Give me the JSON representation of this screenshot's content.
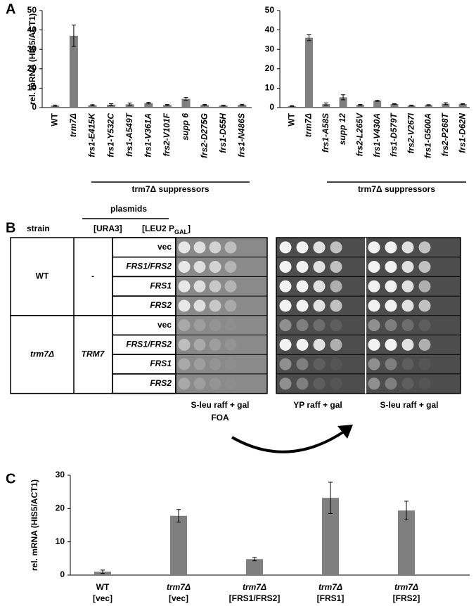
{
  "panel_labels": [
    "A",
    "B",
    "C"
  ],
  "chart_data": [
    {
      "type": "bar",
      "ylabel": "rel. mRNA (HIS5/ACT1)",
      "color": "#7f7f7f",
      "categories": [
        "WT",
        "trm7Δ",
        "frs1-E415K",
        "frs1-Y532C",
        "frs1-A549T",
        "frs1-V361A",
        "frs2-V101F",
        "supp 6",
        "frs2-D275G",
        "frs1-D55H",
        "frs1-N486S"
      ],
      "values": [
        1,
        37,
        1.2,
        1.5,
        1.7,
        2.3,
        1.3,
        4.5,
        1.3,
        1,
        1.4
      ],
      "errors": [
        0.3,
        5.5,
        0.3,
        0.5,
        0.6,
        0.4,
        0.3,
        0.7,
        0.3,
        0.2,
        0.3
      ],
      "ylim": [
        0,
        50
      ],
      "yticks": [
        0,
        10,
        20,
        30,
        40,
        50
      ],
      "group_label": "trm7Δ suppressors"
    },
    {
      "type": "bar",
      "color": "#7f7f7f",
      "categories": [
        "WT",
        "trm7Δ",
        "frs1-A58S",
        "supp 12",
        "frs2-L265V",
        "frs1-V430A",
        "frs1-D579T",
        "frs2-V267I",
        "frs1-G500A",
        "frs2-P268T",
        "frs1-D62N"
      ],
      "values": [
        0.8,
        36,
        1.8,
        5.3,
        1.4,
        3.5,
        1.8,
        1,
        1.3,
        2,
        1.8
      ],
      "errors": [
        0.2,
        1.5,
        0.6,
        1.3,
        0.2,
        0.3,
        0.2,
        0.2,
        0.2,
        0.5,
        0.2
      ],
      "ylim": [
        0,
        50
      ],
      "yticks": [
        0,
        10,
        20,
        30,
        40,
        50
      ],
      "group_label": "trm7Δ suppressors"
    },
    {
      "type": "bar",
      "ylabel": "rel. mRNA (HIS5/ACT1)",
      "color": "#7f7f7f",
      "categories": [
        "WT",
        "trm7Δ",
        "trm7Δ",
        "trm7Δ",
        "trm7Δ"
      ],
      "category_sublabels": [
        "[vec]",
        "[vec]",
        "[FRS1/FRS2]",
        "[FRS1]",
        "[FRS2]"
      ],
      "values": [
        1,
        17.8,
        4.8,
        23.2,
        19.4
      ],
      "errors": [
        0.5,
        1.9,
        0.5,
        4.7,
        2.8
      ],
      "ylim": [
        0,
        30
      ],
      "yticks": [
        0,
        10,
        20,
        30
      ]
    }
  ],
  "panel_b": {
    "plasmids": "plasmids",
    "strain": "strain",
    "ura3": "[URA3]",
    "leu2": {
      "main": "[LEU2 P",
      "sub": "GAL",
      "end": "]"
    },
    "groups": [
      {
        "strain": "WT",
        "ura3": "-",
        "rows": [
          "vec",
          "FRS1/FRS2",
          "FRS1",
          "FRS2"
        ]
      },
      {
        "strain": "trm7Δ",
        "ura3": "TRM7",
        "rows": [
          "vec",
          "FRS1/FRS2",
          "FRS1",
          "FRS2"
        ]
      }
    ],
    "plates": [
      {
        "label": "S-leu raff + gal",
        "sublabel": "FOA"
      },
      {
        "label": "YP raff + gal"
      },
      {
        "label": "S-leu raff + gal"
      }
    ]
  }
}
